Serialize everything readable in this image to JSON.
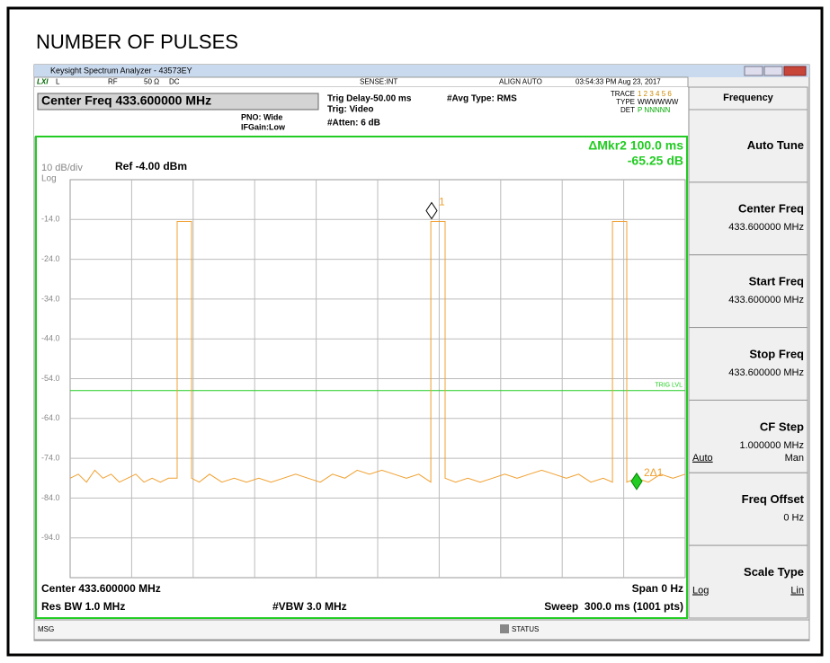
{
  "title": "NUMBER OF PULSES",
  "window": {
    "title": "Keysight Spectrum Analyzer - 43573EY"
  },
  "status": {
    "lxi": "LXI",
    "input": "L",
    "rf": "RF",
    "impedance": "50 Ω",
    "coupling": "DC",
    "sense": "SENSE:INT",
    "align": "ALIGN AUTO",
    "time": "03:54:33 PM Aug 23, 2017"
  },
  "settings": {
    "center_freq": "Center Freq 433.600000 MHz",
    "pno": "PNO: Wide",
    "ifgain": "IFGain:Low",
    "trig_delay": "Trig Delay-50.00 ms",
    "trig": "Trig: Video",
    "atten": "#Atten: 6 dB",
    "avg_type": "#Avg Type: RMS",
    "trace_label": "TRACE",
    "trace": "1 2 3 4 5 6",
    "type_label": "TYPE",
    "type": "WWWWWW",
    "det_label": "DET",
    "det": "P NNNNN"
  },
  "chart_data": {
    "type": "line",
    "marker_readout": [
      "ΔMkr2 100.0 ms",
      "-65.25 dB"
    ],
    "scale": "10 dB/div",
    "ref": "Ref -4.00 dBm",
    "log": "Log",
    "xlim": [
      0,
      300
    ],
    "ylim": [
      -104,
      -4
    ],
    "yticks": [
      {
        "value": -14,
        "label": "-14.0"
      },
      {
        "value": -24,
        "label": "-24.0"
      },
      {
        "value": -34,
        "label": "-34.0"
      },
      {
        "value": -44,
        "label": "-44.0"
      },
      {
        "value": -54,
        "label": "-54.0"
      },
      {
        "value": -64,
        "label": "-64.0"
      },
      {
        "value": -74,
        "label": "-74.0"
      },
      {
        "value": -84,
        "label": "-84.0"
      },
      {
        "value": -94,
        "label": "-94.0"
      }
    ],
    "grid": true,
    "color": "#f0a030",
    "x": [
      0,
      4,
      8,
      12,
      16,
      20,
      24,
      28,
      32,
      36,
      40,
      44,
      48,
      52.2,
      52.2,
      59.2,
      59.2,
      63,
      68,
      74,
      80,
      86,
      92,
      98,
      104,
      110,
      116,
      122,
      128,
      134,
      140,
      146,
      152,
      158,
      164,
      170,
      175.9,
      175.9,
      182.9,
      182.9,
      188,
      194,
      200,
      206,
      212,
      218,
      224,
      230,
      236,
      242,
      248,
      254,
      260,
      264.5,
      264.5,
      271.5,
      271.5,
      276,
      282,
      288,
      294,
      300
    ],
    "values": [
      -79,
      -78,
      -80,
      -77,
      -79,
      -78,
      -80,
      -79,
      -78,
      -80,
      -79,
      -80,
      -79,
      -79,
      -14.5,
      -14.5,
      -79,
      -80,
      -78,
      -80,
      -79,
      -80,
      -79,
      -80,
      -79,
      -78,
      -79,
      -80,
      -78,
      -79,
      -77,
      -78,
      -77,
      -78,
      -79,
      -78,
      -80,
      -14.5,
      -14.5,
      -79,
      -80,
      -79,
      -80,
      -79,
      -78,
      -79,
      -78,
      -77,
      -78,
      -79,
      -78,
      -80,
      -79,
      -80,
      -14.5,
      -14.5,
      -80,
      -79,
      -80,
      -78,
      -79,
      -78
    ],
    "trig_level": {
      "label": "TRIG LVL",
      "value": -57
    },
    "markers": [
      {
        "label": "1",
        "x": 176.3,
        "value": -14.5
      },
      {
        "label": "2Δ1",
        "x": 276.3,
        "value": -79.8
      }
    ]
  },
  "footer": {
    "center": "Center 433.600000 MHz",
    "span": "Span 0 Hz",
    "rbw": "Res BW 1.0 MHz",
    "vbw": "#VBW 3.0 MHz",
    "sweep": "Sweep  300.0 ms (1001 pts)"
  },
  "message_bar": {
    "msg": "MSG",
    "status": "STATUS"
  },
  "softkeys": {
    "menu": "Frequency",
    "keys": [
      {
        "label": "Auto Tune"
      },
      {
        "label": "Center Freq",
        "value": "433.600000 MHz"
      },
      {
        "label": "Start Freq",
        "value": "433.600000 MHz"
      },
      {
        "label": "Stop Freq",
        "value": "433.600000 MHz"
      },
      {
        "label": "CF Step",
        "value": "1.000000 MHz",
        "options": [
          "Auto",
          "Man"
        ]
      },
      {
        "label": "Freq Offset",
        "value": "0 Hz"
      },
      {
        "label": "Scale Type",
        "options": [
          "Log",
          "Lin"
        ]
      }
    ]
  }
}
